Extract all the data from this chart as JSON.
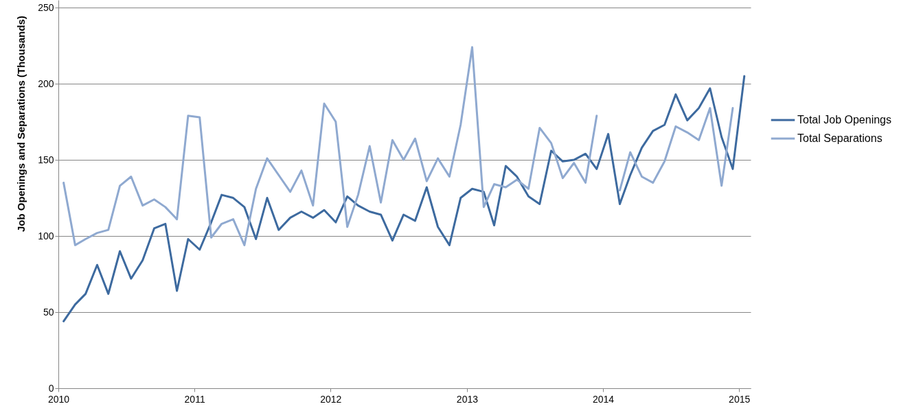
{
  "chart_data": {
    "type": "line",
    "ylabel": "Job Openings and Separations (Thousands)",
    "x": [
      "2010-01-15",
      "2010-02-15",
      "2010-03-15",
      "2010-04-15",
      "2010-05-15",
      "2010-06-15",
      "2010-07-15",
      "2010-08-15",
      "2010-09-15",
      "2010-10-15",
      "2010-11-15",
      "2010-12-15",
      "2011-01-15",
      "2011-02-15",
      "2011-03-15",
      "2011-04-15",
      "2011-05-15",
      "2011-06-15",
      "2011-07-15",
      "2011-08-15",
      "2011-09-15",
      "2011-10-15",
      "2011-11-15",
      "2011-12-15",
      "2012-01-15",
      "2012-02-15",
      "2012-03-15",
      "2012-04-15",
      "2012-05-15",
      "2012-06-15",
      "2012-07-15",
      "2012-08-15",
      "2012-09-15",
      "2012-10-15",
      "2012-11-15",
      "2012-12-15",
      "2013-01-15",
      "2013-02-15",
      "2013-03-15",
      "2013-04-15",
      "2013-05-15",
      "2013-06-15",
      "2013-07-15",
      "2013-08-15",
      "2013-09-15",
      "2013-10-15",
      "2013-11-15",
      "2013-12-15",
      "2014-01-15",
      "2014-02-15",
      "2014-03-15",
      "2014-04-15",
      "2014-05-15",
      "2014-06-15",
      "2014-07-15",
      "2014-08-15",
      "2014-09-15",
      "2014-10-15",
      "2014-11-15",
      "2014-12-15",
      "2015-01-15"
    ],
    "xlim": [
      "2010",
      "2015-02"
    ],
    "xticks": [
      "2010",
      "2011",
      "2012",
      "2013",
      "2014",
      "2015"
    ],
    "ylim": [
      0,
      255
    ],
    "yticks": [
      0,
      50,
      100,
      150,
      200,
      250
    ],
    "grid": "y",
    "legend": "right",
    "marker": "none",
    "line_style": "solid",
    "series": [
      {
        "name": "Total Job Openings",
        "color": "#3d6a9f",
        "values": [
          44,
          55,
          62,
          81,
          62,
          90,
          72,
          84,
          105,
          108,
          64,
          98,
          91,
          109,
          127,
          125,
          119,
          98,
          125,
          104,
          112,
          116,
          112,
          117,
          109,
          126,
          120,
          116,
          114,
          97,
          114,
          110,
          132,
          106,
          94,
          125,
          131,
          129,
          107,
          146,
          139,
          126,
          121,
          156,
          149,
          150,
          154,
          144,
          167,
          121,
          140,
          158,
          169,
          173,
          193,
          176,
          184,
          197,
          165,
          144,
          205
        ]
      },
      {
        "name": "Total Separations",
        "color": "#8fa9d0",
        "values": [
          135,
          94,
          98,
          102,
          104,
          133,
          139,
          120,
          124,
          119,
          111,
          179,
          178,
          99,
          108,
          111,
          94,
          131,
          151,
          140,
          129,
          143,
          120,
          187,
          175,
          106,
          127,
          159,
          122,
          163,
          150,
          164,
          136,
          151,
          139,
          173,
          224,
          119,
          134,
          132,
          137,
          131,
          171,
          161,
          138,
          148,
          135,
          179,
          null,
          130,
          155,
          139,
          135,
          149,
          172,
          168,
          163,
          184,
          133,
          184,
          null
        ]
      }
    ]
  }
}
